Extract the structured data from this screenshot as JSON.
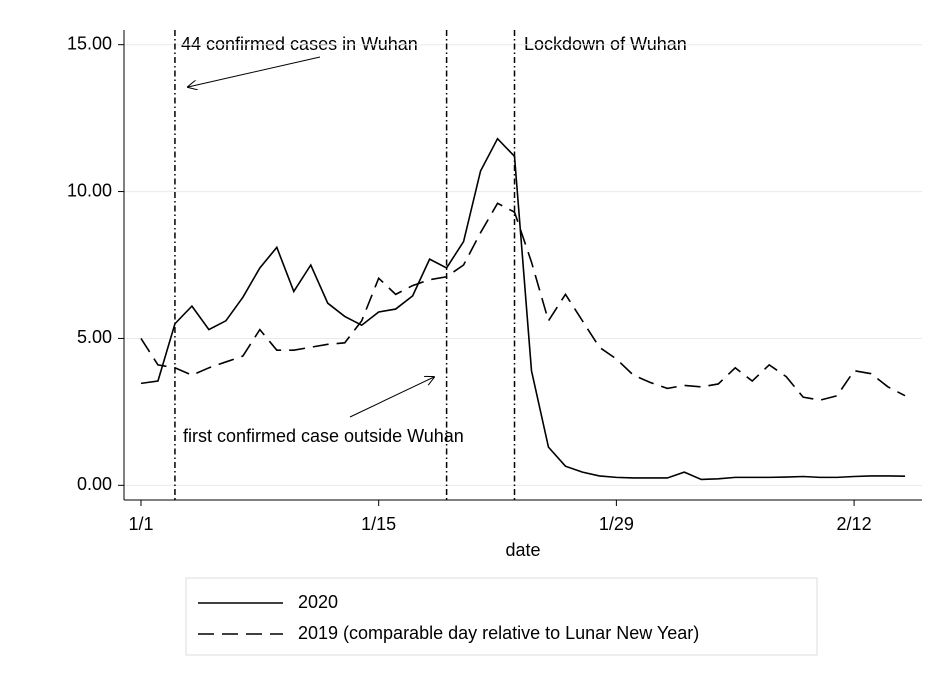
{
  "chart_data": {
    "type": "line",
    "x_label": "date",
    "x": [
      0,
      1,
      2,
      3,
      4,
      5,
      6,
      7,
      8,
      9,
      10,
      11,
      12,
      13,
      14,
      15,
      16,
      17,
      18,
      19,
      20,
      21,
      22,
      23,
      24,
      25,
      26,
      27,
      28,
      29,
      30,
      31,
      32,
      33,
      34,
      35,
      36,
      37,
      38,
      39,
      40,
      41,
      42,
      43,
      44,
      45
    ],
    "series": [
      {
        "name": "2020",
        "color": "#000000",
        "dash": "solid",
        "values": [
          3.47,
          3.55,
          5.5,
          6.1,
          5.3,
          5.6,
          6.4,
          7.4,
          8.1,
          6.6,
          7.5,
          6.2,
          5.75,
          5.45,
          5.9,
          6.0,
          6.45,
          7.7,
          7.4,
          8.3,
          10.7,
          11.8,
          11.2,
          3.9,
          1.3,
          0.65,
          0.45,
          0.32,
          0.27,
          0.25,
          0.25,
          0.25,
          0.45,
          0.2,
          0.22,
          0.27,
          0.27,
          0.27,
          0.28,
          0.3,
          0.27,
          0.27,
          0.3,
          0.32,
          0.32,
          0.31
        ]
      },
      {
        "name": "2019 (comparable day relative to Lunar New Year)",
        "color": "#000000",
        "dash": "dashed",
        "values": [
          5.0,
          4.1,
          4.0,
          3.75,
          4.0,
          4.2,
          4.4,
          5.3,
          4.6,
          4.6,
          4.7,
          4.8,
          4.85,
          5.6,
          7.05,
          6.5,
          6.8,
          7.0,
          7.1,
          7.5,
          8.6,
          9.6,
          9.3,
          7.6,
          5.6,
          6.5,
          5.6,
          4.7,
          4.3,
          3.75,
          3.5,
          3.3,
          3.4,
          3.35,
          3.45,
          4.0,
          3.55,
          4.1,
          3.7,
          3.0,
          2.9,
          3.05,
          3.9,
          3.8,
          3.35,
          3.05
        ]
      }
    ],
    "xlim": [
      -1,
      46
    ],
    "xticks": [
      {
        "value": 0,
        "label": "1/1"
      },
      {
        "value": 14,
        "label": "1/15"
      },
      {
        "value": 28,
        "label": "1/29"
      },
      {
        "value": 42,
        "label": "2/12"
      }
    ],
    "ylim": [
      -0.5,
      15.5
    ],
    "yticks": [
      {
        "value": 0,
        "label": "0.00"
      },
      {
        "value": 5,
        "label": "5.00"
      },
      {
        "value": 10,
        "label": "10.00"
      },
      {
        "value": 15,
        "label": "15.00"
      }
    ],
    "grid": true,
    "vlines": [
      2,
      18,
      22
    ],
    "annotations": [
      "44 confirmed cases in Wuhan",
      "first confirmed case outside Wuhan",
      "Lockdown of Wuhan"
    ],
    "legend_position": "bottom"
  }
}
